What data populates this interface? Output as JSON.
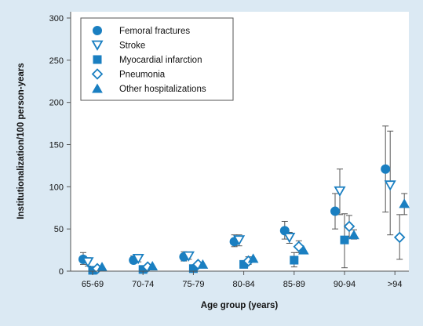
{
  "chart_data": {
    "type": "scatter",
    "categories": [
      "65-69",
      "70-74",
      "75-79",
      "80-84",
      "85-89",
      "90-94",
      ">94"
    ],
    "xlabel": "Age group (years)",
    "ylabel": "Institutionalization/100 person-years",
    "ylim": [
      0,
      300
    ],
    "yticks": [
      0,
      50,
      100,
      150,
      200,
      250,
      300
    ],
    "grid": false,
    "legend_position": "top-left",
    "colors": {
      "marker": "#1a7fc1",
      "errorbar": "#555555",
      "background": "#dbe9f3",
      "plot_area": "#ffffff"
    },
    "series": [
      {
        "name": "Femoral fractures",
        "marker": "circle",
        "filled": true,
        "values": [
          14,
          13,
          17,
          35,
          48,
          71,
          121
        ],
        "err_low": [
          8,
          9,
          12,
          29,
          38,
          50,
          70
        ],
        "err_high": [
          22,
          18,
          23,
          43,
          59,
          92,
          172
        ]
      },
      {
        "name": "Stroke",
        "marker": "triangle-down",
        "filled": false,
        "values": [
          11,
          15,
          18,
          37,
          40,
          95,
          102
        ],
        "err_low": [
          6,
          11,
          14,
          30,
          33,
          67,
          43
        ],
        "err_high": [
          16,
          20,
          22,
          43,
          46,
          121,
          166
        ]
      },
      {
        "name": "Myocardial infarction",
        "marker": "square",
        "filled": true,
        "values": [
          1,
          2,
          3,
          8,
          13,
          37,
          null
        ],
        "err_low": [
          null,
          null,
          null,
          null,
          5,
          4,
          null
        ],
        "err_high": [
          null,
          null,
          null,
          null,
          22,
          68,
          null
        ]
      },
      {
        "name": "Pneumonia",
        "marker": "diamond",
        "filled": false,
        "values": [
          3,
          5,
          8,
          12,
          29,
          53,
          40
        ],
        "err_low": [
          null,
          null,
          null,
          8,
          22,
          40,
          14
        ],
        "err_high": [
          null,
          null,
          null,
          17,
          36,
          66,
          67
        ]
      },
      {
        "name": "Other hospitalizations",
        "marker": "triangle-up",
        "filled": true,
        "values": [
          5,
          6,
          8,
          15,
          25,
          43,
          80
        ],
        "err_low": [
          null,
          null,
          null,
          null,
          null,
          38,
          67
        ],
        "err_high": [
          null,
          null,
          null,
          null,
          null,
          49,
          92
        ]
      }
    ]
  }
}
